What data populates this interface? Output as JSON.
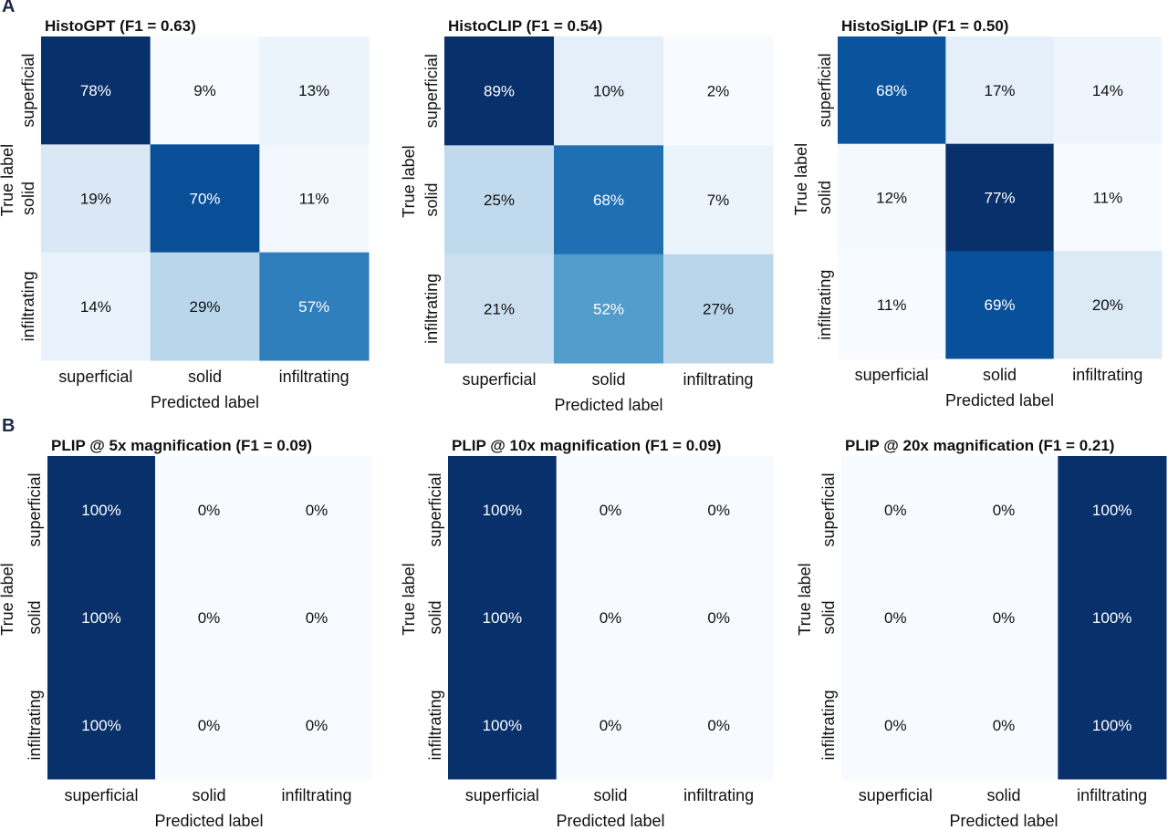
{
  "panels": [
    "A",
    "B"
  ],
  "chart_data": [
    {
      "type": "heatmap",
      "title": "HistoGPT (F1 = 0.63)",
      "xlabel": "Predicted label",
      "ylabel": "True label",
      "xticks": [
        "superficial",
        "solid",
        "infiltrating"
      ],
      "yticks": [
        "superficial",
        "solid",
        "infiltrating"
      ],
      "values": [
        [
          78,
          9,
          13
        ],
        [
          19,
          70,
          11
        ],
        [
          14,
          29,
          57
        ]
      ],
      "labels": [
        [
          "78%",
          "9%",
          "13%"
        ],
        [
          "19%",
          "70%",
          "11%"
        ],
        [
          "14%",
          "29%",
          "57%"
        ]
      ],
      "colormap": "Blues"
    },
    {
      "type": "heatmap",
      "title": "HistoCLIP (F1 = 0.54)",
      "xlabel": "Predicted label",
      "ylabel": "True label",
      "xticks": [
        "superficial",
        "solid",
        "infiltrating"
      ],
      "yticks": [
        "superficial",
        "solid",
        "infiltrating"
      ],
      "values": [
        [
          89,
          10,
          2
        ],
        [
          25,
          68,
          7
        ],
        [
          21,
          52,
          27
        ]
      ],
      "labels": [
        [
          "89%",
          "10%",
          "2%"
        ],
        [
          "25%",
          "68%",
          "7%"
        ],
        [
          "21%",
          "52%",
          "27%"
        ]
      ],
      "colormap": "Blues"
    },
    {
      "type": "heatmap",
      "title": "HistoSigLIP (F1 = 0.50)",
      "xlabel": "Predicted label",
      "ylabel": "True label",
      "xticks": [
        "superficial",
        "solid",
        "infiltrating"
      ],
      "yticks": [
        "superficial",
        "solid",
        "infiltrating"
      ],
      "values": [
        [
          68,
          17,
          14
        ],
        [
          12,
          77,
          11
        ],
        [
          11,
          69,
          20
        ]
      ],
      "labels": [
        [
          "68%",
          "17%",
          "14%"
        ],
        [
          "12%",
          "77%",
          "11%"
        ],
        [
          "11%",
          "69%",
          "20%"
        ]
      ],
      "colormap": "Blues"
    },
    {
      "type": "heatmap",
      "title": "PLIP @ 5x magnification (F1 = 0.09)",
      "xlabel": "Predicted label",
      "ylabel": "True label",
      "xticks": [
        "superficial",
        "solid",
        "infiltrating"
      ],
      "yticks": [
        "superficial",
        "solid",
        "infiltrating"
      ],
      "values": [
        [
          100,
          0,
          0
        ],
        [
          100,
          0,
          0
        ],
        [
          100,
          0,
          0
        ]
      ],
      "labels": [
        [
          "100%",
          "0%",
          "0%"
        ],
        [
          "100%",
          "0%",
          "0%"
        ],
        [
          "100%",
          "0%",
          "0%"
        ]
      ],
      "colormap": "Blues"
    },
    {
      "type": "heatmap",
      "title": "PLIP @ 10x magnification (F1 = 0.09)",
      "xlabel": "Predicted label",
      "ylabel": "True label",
      "xticks": [
        "superficial",
        "solid",
        "infiltrating"
      ],
      "yticks": [
        "superficial",
        "solid",
        "infiltrating"
      ],
      "values": [
        [
          100,
          0,
          0
        ],
        [
          100,
          0,
          0
        ],
        [
          100,
          0,
          0
        ]
      ],
      "labels": [
        [
          "100%",
          "0%",
          "0%"
        ],
        [
          "100%",
          "0%",
          "0%"
        ],
        [
          "100%",
          "0%",
          "0%"
        ]
      ],
      "colormap": "Blues"
    },
    {
      "type": "heatmap",
      "title": "PLIP @ 20x magnification (F1 = 0.21)",
      "xlabel": "Predicted label",
      "ylabel": "True label",
      "xticks": [
        "superficial",
        "solid",
        "infiltrating"
      ],
      "yticks": [
        "superficial",
        "solid",
        "infiltrating"
      ],
      "values": [
        [
          0,
          0,
          100
        ],
        [
          0,
          0,
          100
        ],
        [
          0,
          0,
          100
        ]
      ],
      "labels": [
        [
          "0%",
          "0%",
          "100%"
        ],
        [
          "0%",
          "0%",
          "100%"
        ],
        [
          "0%",
          "0%",
          "100%"
        ]
      ],
      "colormap": "Blues"
    }
  ]
}
